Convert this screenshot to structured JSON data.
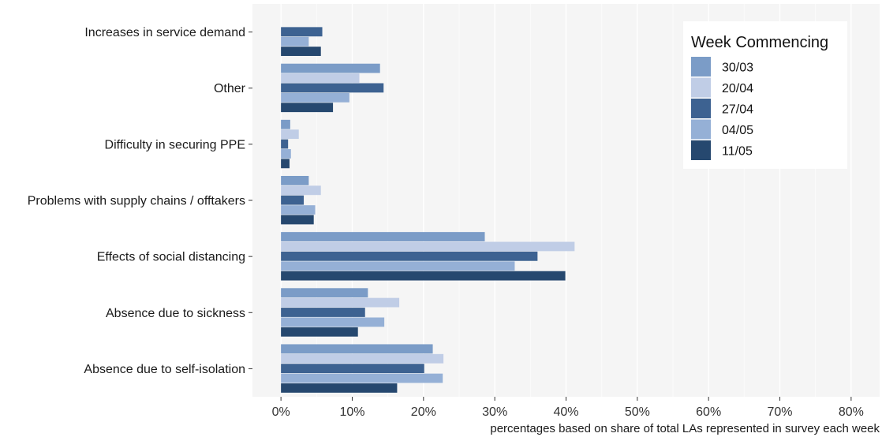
{
  "chart_data": {
    "type": "bar",
    "orientation": "horizontal",
    "categories": [
      "Increases in service demand",
      "Other",
      "Difficulty in securing PPE",
      "Problems with supply chains / offtakers",
      "Effects of social distancing",
      "Absence due to sickness",
      "Absence due to self-isolation"
    ],
    "series": [
      {
        "name": "30/03",
        "color": "#7b9cc7",
        "values": [
          null,
          13.9,
          1.3,
          3.9,
          28.6,
          12.2,
          21.3
        ]
      },
      {
        "name": "20/04",
        "color": "#c0cde6",
        "values": [
          null,
          11.0,
          2.5,
          5.6,
          41.2,
          16.6,
          22.8
        ]
      },
      {
        "name": "27/04",
        "color": "#3d6291",
        "values": [
          5.8,
          14.4,
          1.0,
          3.2,
          36.0,
          11.8,
          20.1
        ]
      },
      {
        "name": "04/05",
        "color": "#95b0d6",
        "values": [
          3.9,
          9.6,
          1.4,
          4.8,
          32.8,
          14.5,
          22.7
        ]
      },
      {
        "name": "11/05",
        "color": "#26486f",
        "values": [
          5.6,
          7.3,
          1.2,
          4.6,
          39.9,
          10.8,
          16.3
        ]
      }
    ],
    "xticks": [
      "0%",
      "10%",
      "20%",
      "30%",
      "40%",
      "50%",
      "60%",
      "70%",
      "80%"
    ],
    "xlim": [
      -4,
      84
    ],
    "xlabel": "percentages based on share of total LAs represented in survey each week",
    "ylabel": "",
    "title": "",
    "legend": {
      "title": "Week Commencing",
      "position": "top-right"
    },
    "grid": true
  }
}
